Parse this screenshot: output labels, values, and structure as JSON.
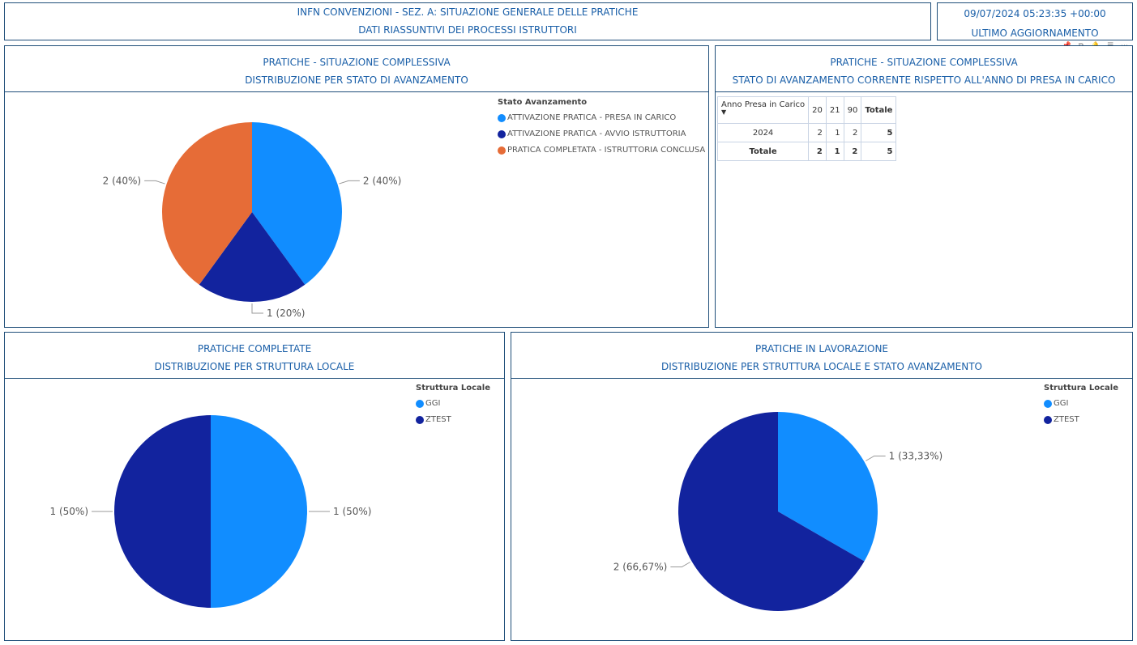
{
  "header": {
    "title_line1": "INFN CONVENZIONI - SEZ. A: SITUAZIONE GENERALE DELLE PRATICHE",
    "title_line2": "DATI RIASSUNTIVI DEI PROCESSI ISTRUTTORI",
    "timestamp": "09/07/2024 05:23:35 +00:00",
    "timestamp_label": "ULTIMO AGGIORNAMENTO"
  },
  "toolbar": {
    "pin_icon": "📌",
    "copy_icon": "⧉",
    "alert_icon": "🔔",
    "filter_icon": "☰",
    "more_icon": "⋯"
  },
  "panel1": {
    "title1": "PRATICHE - SITUAZIONE COMPLESSIVA",
    "title2": "DISTRIBUZIONE PER STATO DI AVANZAMENTO"
  },
  "panel2": {
    "title1": "PRATICHE - SITUAZIONE COMPLESSIVA",
    "title2": "STATO DI AVANZAMENTO CORRENTE RISPETTO ALL'ANNO DI PRESA IN CARICO"
  },
  "panel3": {
    "title1": "PRATICHE COMPLETATE",
    "title2": "DISTRIBUZIONE PER STRUTTURA LOCALE"
  },
  "panel4": {
    "title1": "PRATICHE IN LAVORAZIONE",
    "title2": "DISTRIBUZIONE PER STRUTTURA LOCALE E STATO AVANZAMENTO"
  },
  "matrix": {
    "row_header": "Anno Presa in Carico",
    "columns": [
      "20",
      "21",
      "90",
      "Totale"
    ],
    "rows": [
      {
        "label": "2024",
        "values": [
          "2",
          "1",
          "2",
          "5"
        ]
      },
      {
        "label": "Totale",
        "values": [
          "2",
          "1",
          "2",
          "5"
        ]
      }
    ]
  },
  "chart_data": [
    {
      "type": "pie",
      "title": "PRATICHE - SITUAZIONE COMPLESSIVA",
      "legend_title": "Stato Avanzamento",
      "categories": [
        "ATTIVAZIONE PRATICA - PRESA IN CARICO",
        "ATTIVAZIONE PRATICA - AVVIO ISTRUTTORIA",
        "PRATICA COMPLETATA - ISTRUTTORIA CONCLUSA"
      ],
      "values": [
        2,
        1,
        2
      ],
      "labels": [
        "2 (40%)",
        "1 (20%)",
        "2 (40%)"
      ],
      "colors": [
        "#118dff",
        "#12239e",
        "#e66c37"
      ]
    },
    {
      "type": "pie",
      "title": "PRATICHE COMPLETATE",
      "legend_title": "Struttura Locale",
      "categories": [
        "GGI",
        "ZTEST"
      ],
      "values": [
        1,
        1
      ],
      "labels": [
        "1 (50%)",
        "1 (50%)"
      ],
      "colors": [
        "#118dff",
        "#12239e"
      ]
    },
    {
      "type": "pie",
      "title": "PRATICHE IN LAVORAZIONE",
      "legend_title": "Struttura Locale",
      "categories": [
        "GGI",
        "ZTEST"
      ],
      "values": [
        1,
        2
      ],
      "labels": [
        "1 (33,33%)",
        "2 (66,67%)"
      ],
      "colors": [
        "#118dff",
        "#12239e"
      ]
    }
  ]
}
